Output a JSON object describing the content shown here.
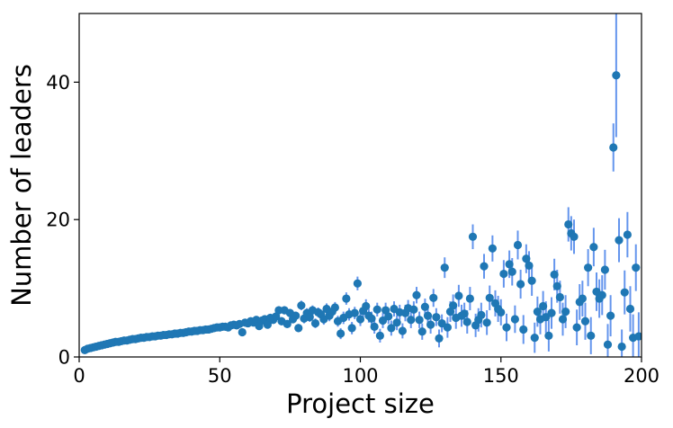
{
  "chart_data": {
    "type": "scatter",
    "title": "",
    "xlabel": "Project size",
    "ylabel": "Number of leaders",
    "xlim": [
      0,
      200
    ],
    "ylim": [
      0,
      50
    ],
    "x_ticks": [
      0,
      50,
      100,
      150,
      200
    ],
    "y_ticks": [
      0,
      20,
      40
    ],
    "grid": false,
    "legend": "none",
    "colors": {
      "point": "#1f77b4",
      "errorbar": "#6495ed"
    },
    "points": [
      [
        2,
        1.0,
        0.1
      ],
      [
        3,
        1.2,
        0.1
      ],
      [
        4,
        1.3,
        0.1
      ],
      [
        5,
        1.4,
        0.1
      ],
      [
        6,
        1.5,
        0.1
      ],
      [
        7,
        1.6,
        0.1
      ],
      [
        8,
        1.7,
        0.1
      ],
      [
        9,
        1.8,
        0.1
      ],
      [
        10,
        1.9,
        0.1
      ],
      [
        11,
        2.0,
        0.1
      ],
      [
        12,
        2.1,
        0.1
      ],
      [
        13,
        2.2,
        0.1
      ],
      [
        14,
        2.2,
        0.1
      ],
      [
        15,
        2.3,
        0.1
      ],
      [
        16,
        2.4,
        0.2
      ],
      [
        17,
        2.4,
        0.2
      ],
      [
        18,
        2.5,
        0.2
      ],
      [
        19,
        2.6,
        0.2
      ],
      [
        20,
        2.6,
        0.2
      ],
      [
        21,
        2.7,
        0.2
      ],
      [
        22,
        2.8,
        0.2
      ],
      [
        23,
        2.8,
        0.2
      ],
      [
        24,
        2.9,
        0.2
      ],
      [
        25,
        2.9,
        0.2
      ],
      [
        26,
        3.0,
        0.2
      ],
      [
        27,
        3.0,
        0.2
      ],
      [
        28,
        3.1,
        0.2
      ],
      [
        29,
        3.1,
        0.2
      ],
      [
        30,
        3.2,
        0.2
      ],
      [
        31,
        3.2,
        0.2
      ],
      [
        32,
        3.3,
        0.2
      ],
      [
        33,
        3.3,
        0.2
      ],
      [
        34,
        3.4,
        0.2
      ],
      [
        35,
        3.4,
        0.2
      ],
      [
        36,
        3.5,
        0.3
      ],
      [
        37,
        3.5,
        0.3
      ],
      [
        38,
        3.6,
        0.3
      ],
      [
        39,
        3.7,
        0.3
      ],
      [
        40,
        3.7,
        0.3
      ],
      [
        41,
        3.8,
        0.3
      ],
      [
        42,
        3.8,
        0.3
      ],
      [
        43,
        3.9,
        0.3
      ],
      [
        44,
        3.9,
        0.3
      ],
      [
        45,
        4.0,
        0.3
      ],
      [
        46,
        4.0,
        0.3
      ],
      [
        47,
        4.1,
        0.3
      ],
      [
        48,
        4.2,
        0.3
      ],
      [
        49,
        4.3,
        0.3
      ],
      [
        50,
        4.3,
        0.3
      ],
      [
        51,
        4.4,
        0.3
      ],
      [
        52,
        4.4,
        0.4
      ],
      [
        53,
        4.3,
        0.4
      ],
      [
        54,
        4.6,
        0.4
      ],
      [
        55,
        4.7,
        0.4
      ],
      [
        56,
        4.6,
        0.4
      ],
      [
        57,
        4.8,
        0.4
      ],
      [
        58,
        3.6,
        0.4
      ],
      [
        59,
        5.0,
        0.4
      ],
      [
        60,
        4.9,
        0.4
      ],
      [
        61,
        5.2,
        0.4
      ],
      [
        62,
        5.0,
        0.4
      ],
      [
        63,
        5.4,
        0.4
      ],
      [
        64,
        4.5,
        0.5
      ],
      [
        65,
        5.3,
        0.5
      ],
      [
        66,
        5.5,
        0.5
      ],
      [
        67,
        4.7,
        0.5
      ],
      [
        68,
        5.7,
        0.5
      ],
      [
        69,
        5.4,
        0.5
      ],
      [
        70,
        5.9,
        0.5
      ],
      [
        71,
        6.8,
        0.6
      ],
      [
        72,
        5.2,
        0.6
      ],
      [
        73,
        6.8,
        0.6
      ],
      [
        74,
        4.8,
        0.6
      ],
      [
        75,
        6.4,
        0.6
      ],
      [
        76,
        5.5,
        0.6
      ],
      [
        77,
        6.0,
        0.6
      ],
      [
        78,
        4.2,
        0.6
      ],
      [
        79,
        7.5,
        0.7
      ],
      [
        80,
        5.6,
        0.7
      ],
      [
        81,
        6.4,
        0.7
      ],
      [
        82,
        5.8,
        0.7
      ],
      [
        83,
        6.8,
        0.7
      ],
      [
        84,
        4.9,
        0.7
      ],
      [
        85,
        6.5,
        0.7
      ],
      [
        86,
        6.2,
        0.7
      ],
      [
        87,
        5.5,
        0.8
      ],
      [
        88,
        7.0,
        0.8
      ],
      [
        89,
        6.0,
        0.8
      ],
      [
        90,
        6.6,
        0.8
      ],
      [
        91,
        7.2,
        0.8
      ],
      [
        92,
        5.2,
        0.8
      ],
      [
        93,
        3.4,
        0.8
      ],
      [
        94,
        5.7,
        0.9
      ],
      [
        95,
        8.5,
        0.9
      ],
      [
        96,
        6.2,
        0.9
      ],
      [
        97,
        4.2,
        0.9
      ],
      [
        98,
        6.4,
        0.9
      ],
      [
        99,
        10.7,
        1.0
      ],
      [
        100,
        5.5,
        1.0
      ],
      [
        101,
        6.7,
        1.0
      ],
      [
        102,
        7.4,
        1.0
      ],
      [
        103,
        6.0,
        1.0
      ],
      [
        104,
        5.6,
        1.0
      ],
      [
        105,
        4.4,
        1.0
      ],
      [
        106,
        6.9,
        1.0
      ],
      [
        107,
        3.1,
        1.0
      ],
      [
        108,
        5.3,
        1.1
      ],
      [
        109,
        6.8,
        1.1
      ],
      [
        110,
        5.9,
        1.1
      ],
      [
        111,
        4.2,
        1.1
      ],
      [
        112,
        7.0,
        1.1
      ],
      [
        113,
        5.0,
        1.1
      ],
      [
        114,
        6.5,
        1.1
      ],
      [
        115,
        3.8,
        1.1
      ],
      [
        116,
        6.4,
        1.2
      ],
      [
        117,
        7.1,
        1.2
      ],
      [
        118,
        5.4,
        1.2
      ],
      [
        119,
        6.9,
        1.2
      ],
      [
        120,
        9.0,
        1.2
      ],
      [
        121,
        5.4,
        1.2
      ],
      [
        122,
        3.7,
        1.2
      ],
      [
        123,
        7.3,
        1.2
      ],
      [
        124,
        6.0,
        1.3
      ],
      [
        125,
        4.7,
        1.3
      ],
      [
        126,
        8.6,
        1.3
      ],
      [
        127,
        5.8,
        1.3
      ],
      [
        128,
        2.7,
        1.3
      ],
      [
        129,
        4.9,
        1.3
      ],
      [
        130,
        13.0,
        1.5
      ],
      [
        131,
        4.3,
        1.5
      ],
      [
        132,
        6.6,
        1.5
      ],
      [
        133,
        7.5,
        1.6
      ],
      [
        134,
        5.7,
        1.6
      ],
      [
        135,
        8.9,
        1.6
      ],
      [
        136,
        6.0,
        1.6
      ],
      [
        137,
        6.3,
        1.6
      ],
      [
        138,
        5.1,
        1.7
      ],
      [
        139,
        8.5,
        1.7
      ],
      [
        140,
        17.5,
        1.8
      ],
      [
        141,
        4.6,
        1.7
      ],
      [
        142,
        5.4,
        1.7
      ],
      [
        143,
        6.1,
        1.8
      ],
      [
        144,
        13.2,
        1.8
      ],
      [
        145,
        5.0,
        1.8
      ],
      [
        146,
        8.6,
        1.8
      ],
      [
        147,
        15.8,
        1.9
      ],
      [
        148,
        7.8,
        1.9
      ],
      [
        149,
        7.0,
        1.9
      ],
      [
        150,
        6.5,
        1.9
      ],
      [
        151,
        12.1,
        2.0
      ],
      [
        152,
        4.3,
        2.0
      ],
      [
        153,
        13.5,
        2.0
      ],
      [
        154,
        12.4,
        2.0
      ],
      [
        155,
        5.5,
        2.0
      ],
      [
        156,
        16.3,
        2.1
      ],
      [
        157,
        10.6,
        2.1
      ],
      [
        158,
        4.0,
        2.1
      ],
      [
        159,
        14.3,
        2.1
      ],
      [
        160,
        13.3,
        2.1
      ],
      [
        161,
        11.1,
        2.2
      ],
      [
        162,
        2.8,
        2.2
      ],
      [
        163,
        6.6,
        2.2
      ],
      [
        164,
        5.5,
        2.2
      ],
      [
        165,
        7.4,
        2.2
      ],
      [
        166,
        5.8,
        2.3
      ],
      [
        167,
        3.1,
        2.3
      ],
      [
        168,
        6.4,
        2.3
      ],
      [
        169,
        12.0,
        2.3
      ],
      [
        170,
        10.3,
        2.4
      ],
      [
        171,
        8.7,
        2.4
      ],
      [
        172,
        5.5,
        2.4
      ],
      [
        173,
        6.6,
        2.4
      ],
      [
        174,
        19.3,
        2.5
      ],
      [
        175,
        18.0,
        2.5
      ],
      [
        176,
        17.5,
        2.5
      ],
      [
        177,
        4.3,
        2.6
      ],
      [
        178,
        8.0,
        2.6
      ],
      [
        179,
        8.5,
        2.6
      ],
      [
        180,
        5.2,
        2.7
      ],
      [
        181,
        13.0,
        2.7
      ],
      [
        182,
        3.1,
        2.7
      ],
      [
        183,
        16.0,
        2.8
      ],
      [
        184,
        9.5,
        2.8
      ],
      [
        185,
        8.5,
        2.8
      ],
      [
        186,
        9.0,
        2.9
      ],
      [
        187,
        12.7,
        2.9
      ],
      [
        188,
        1.8,
        3.0
      ],
      [
        189,
        6.0,
        3.0
      ],
      [
        190,
        30.5,
        3.5
      ],
      [
        191,
        41.0,
        9.0
      ],
      [
        192,
        17.0,
        3.2
      ],
      [
        193,
        1.5,
        2.5
      ],
      [
        194,
        9.4,
        3.2
      ],
      [
        195,
        17.8,
        3.3
      ],
      [
        196,
        7.0,
        3.3
      ],
      [
        197,
        2.8,
        3.4
      ],
      [
        198,
        13.0,
        3.4
      ],
      [
        199,
        3.0,
        3.5
      ]
    ]
  }
}
